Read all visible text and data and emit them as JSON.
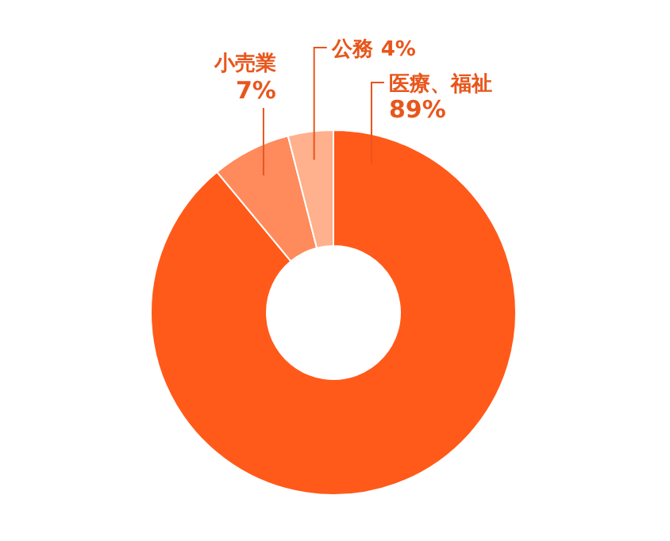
{
  "chart_data": {
    "type": "donut",
    "categories": [
      "医療、福祉",
      "小売業",
      "公務"
    ],
    "values": [
      89,
      7,
      4
    ],
    "value_labels": [
      "89%",
      "7%",
      "4%"
    ],
    "colors": [
      "#ff5a1a",
      "#ff8a5c",
      "#ffb08c"
    ]
  }
}
